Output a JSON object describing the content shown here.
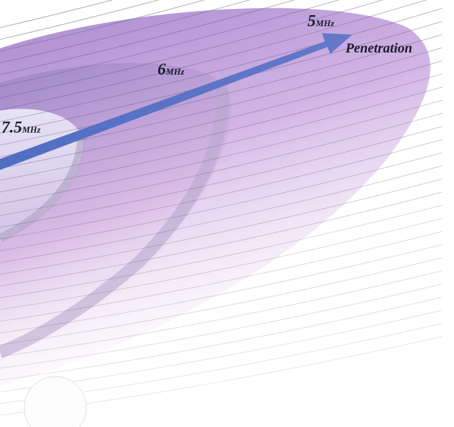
{
  "labels": [
    {
      "value": "5",
      "unit": "MHz"
    },
    {
      "value": "6",
      "unit": "MHz"
    },
    {
      "value": "7.5",
      "unit": "MHz"
    }
  ],
  "arrow_label": "Penetration"
}
